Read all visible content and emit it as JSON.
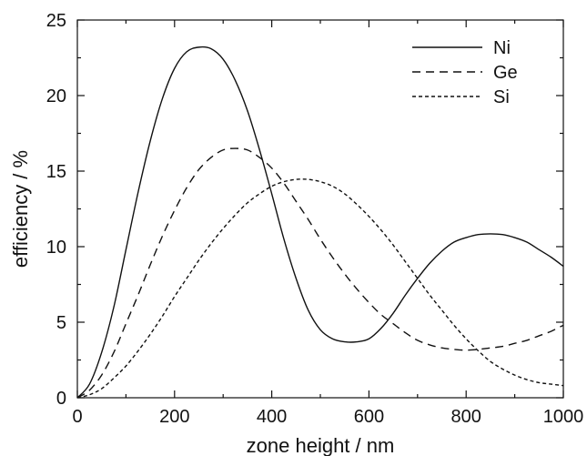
{
  "chart_data": {
    "type": "line",
    "title": "",
    "xlabel": "zone height / nm",
    "ylabel": "efficiency / %",
    "xlim": [
      0,
      1000
    ],
    "ylim": [
      0,
      25
    ],
    "xticks": [
      0,
      200,
      400,
      600,
      800,
      1000
    ],
    "yticks": [
      0,
      5,
      10,
      15,
      20,
      25
    ],
    "grid": false,
    "legend_position": "top-right",
    "series": [
      {
        "name": "Ni",
        "style": "solid",
        "x": [
          0,
          25,
          50,
          75,
          100,
          125,
          150,
          175,
          200,
          225,
          250,
          275,
          300,
          325,
          350,
          375,
          400,
          425,
          450,
          475,
          500,
          525,
          550,
          575,
          600,
          625,
          650,
          675,
          700,
          725,
          750,
          775,
          800,
          825,
          850,
          875,
          900,
          925,
          950,
          975,
          1000
        ],
        "values": [
          0,
          0.9,
          3.0,
          6.0,
          9.8,
          13.6,
          17.0,
          19.8,
          21.8,
          22.9,
          23.2,
          23.1,
          22.4,
          21.0,
          19.0,
          16.4,
          13.5,
          10.5,
          7.9,
          5.8,
          4.5,
          3.9,
          3.7,
          3.7,
          3.9,
          4.6,
          5.6,
          6.8,
          7.9,
          8.9,
          9.7,
          10.3,
          10.6,
          10.8,
          10.85,
          10.8,
          10.6,
          10.3,
          9.8,
          9.3,
          8.7
        ]
      },
      {
        "name": "Ge",
        "style": "dashed",
        "x": [
          0,
          25,
          50,
          75,
          100,
          125,
          150,
          175,
          200,
          225,
          250,
          275,
          300,
          325,
          350,
          375,
          400,
          425,
          450,
          475,
          500,
          525,
          550,
          575,
          600,
          625,
          650,
          675,
          700,
          725,
          750,
          775,
          800,
          825,
          850,
          875,
          900,
          925,
          950,
          975,
          1000
        ],
        "values": [
          0,
          0.5,
          1.5,
          3.0,
          4.9,
          6.8,
          8.8,
          10.7,
          12.4,
          13.9,
          15.1,
          15.9,
          16.4,
          16.5,
          16.4,
          15.9,
          15.2,
          14.2,
          13.0,
          11.8,
          10.5,
          9.3,
          8.2,
          7.2,
          6.3,
          5.5,
          4.9,
          4.3,
          3.8,
          3.5,
          3.3,
          3.2,
          3.15,
          3.2,
          3.3,
          3.4,
          3.6,
          3.8,
          4.1,
          4.4,
          4.8
        ]
      },
      {
        "name": "Si",
        "style": "dotted",
        "x": [
          0,
          25,
          50,
          75,
          100,
          125,
          150,
          175,
          200,
          225,
          250,
          275,
          300,
          325,
          350,
          375,
          400,
          425,
          450,
          475,
          500,
          525,
          550,
          575,
          600,
          625,
          650,
          675,
          700,
          725,
          750,
          775,
          800,
          825,
          850,
          875,
          900,
          925,
          950,
          975,
          1000
        ],
        "values": [
          0,
          0.2,
          0.6,
          1.3,
          2.1,
          3.1,
          4.2,
          5.4,
          6.7,
          7.9,
          9.1,
          10.2,
          11.2,
          12.1,
          12.9,
          13.5,
          14.0,
          14.3,
          14.45,
          14.45,
          14.3,
          14.0,
          13.5,
          12.8,
          12.0,
          11.1,
          10.1,
          9.0,
          7.9,
          6.8,
          5.8,
          4.8,
          3.9,
          3.1,
          2.4,
          1.9,
          1.5,
          1.2,
          1.0,
          0.9,
          0.8
        ]
      }
    ]
  }
}
